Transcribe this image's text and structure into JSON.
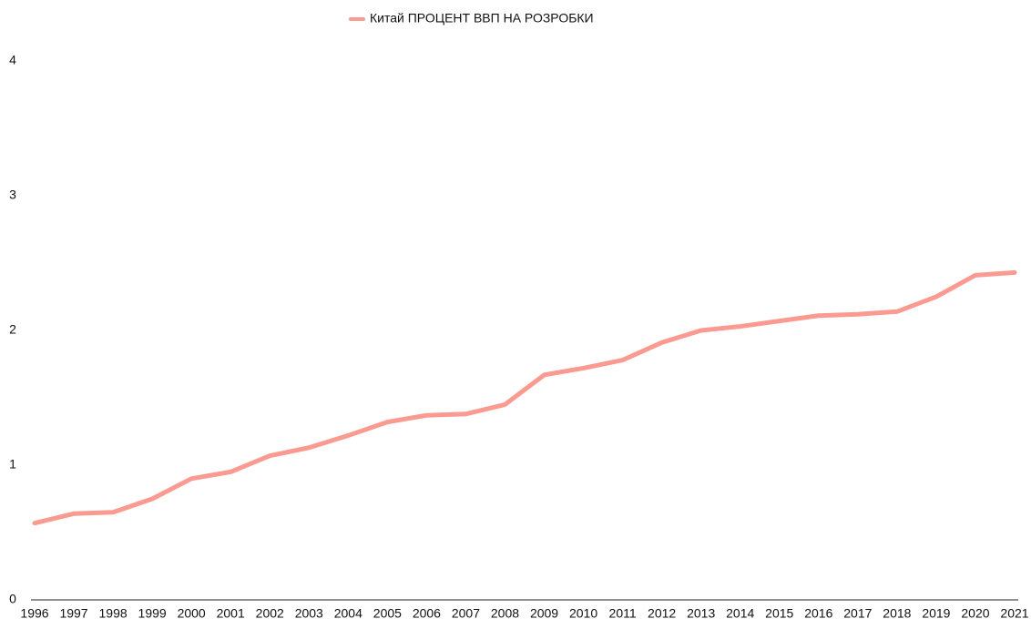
{
  "chart_data": {
    "type": "line",
    "categories": [
      "1996",
      "1997",
      "1998",
      "1999",
      "2000",
      "2001",
      "2002",
      "2003",
      "2004",
      "2005",
      "2006",
      "2007",
      "2008",
      "2009",
      "2010",
      "2011",
      "2012",
      "2013",
      "2014",
      "2015",
      "2016",
      "2017",
      "2018",
      "2019",
      "2020",
      "2021"
    ],
    "series": [
      {
        "name": "Китай ПРОЦЕНТ ВВП НА РОЗРОБКИ",
        "color": "#fa9a90",
        "values": [
          0.57,
          0.64,
          0.65,
          0.75,
          0.9,
          0.95,
          1.07,
          1.13,
          1.22,
          1.32,
          1.37,
          1.38,
          1.45,
          1.67,
          1.72,
          1.78,
          1.91,
          2.0,
          2.03,
          2.07,
          2.11,
          2.12,
          2.14,
          2.25,
          2.41,
          2.43
        ]
      }
    ],
    "ylim": [
      0,
      4
    ],
    "yticks": [
      0,
      1,
      2,
      3,
      4
    ],
    "grid": false,
    "legend": "top"
  }
}
